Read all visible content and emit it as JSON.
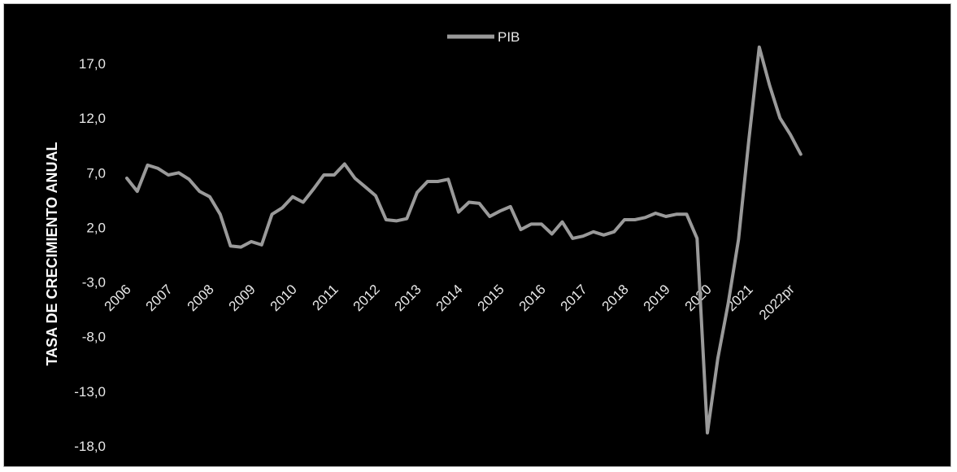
{
  "chart_data": {
    "type": "line",
    "title": "",
    "xlabel": "",
    "ylabel": "TASA DE CRECIMIENTO ANUAL",
    "ylim": [
      -18,
      17
    ],
    "yticks": [
      "-18,0",
      "-13,0",
      "-8,0",
      "-3,0",
      "2,0",
      "7,0",
      "12,0",
      "17,0"
    ],
    "ytick_values": [
      -18,
      -13,
      -8,
      -3,
      2,
      7,
      12,
      17
    ],
    "categories": [
      "2006",
      "2007",
      "2008",
      "2009",
      "2010",
      "2011",
      "2012",
      "2013",
      "2014",
      "2015",
      "2016",
      "2017",
      "2018",
      "2019",
      "2020",
      "2021",
      "2022pr"
    ],
    "legend_position": "top",
    "grid": false,
    "series": [
      {
        "name": "PIB",
        "color": "#9a9a9a",
        "x": [
          0.0,
          0.25,
          0.5,
          0.75,
          1.0,
          1.25,
          1.5,
          1.75,
          2.0,
          2.25,
          2.5,
          2.75,
          3.0,
          3.25,
          3.5,
          3.75,
          4.0,
          4.25,
          4.5,
          4.75,
          5.0,
          5.25,
          5.5,
          5.75,
          6.0,
          6.25,
          6.5,
          6.75,
          7.0,
          7.25,
          7.5,
          7.75,
          8.0,
          8.25,
          8.5,
          8.75,
          9.0,
          9.25,
          9.5,
          9.75,
          10.0,
          10.25,
          10.5,
          10.75,
          11.0,
          11.25,
          11.5,
          11.75,
          12.0,
          12.25,
          12.5,
          12.75,
          13.0,
          13.25,
          13.5,
          13.75,
          14.0,
          14.25,
          14.5,
          14.75,
          15.0,
          15.25,
          15.5,
          15.75,
          16.0,
          16.25
        ],
        "values": [
          6.5,
          5.3,
          7.7,
          7.4,
          6.8,
          7.0,
          6.4,
          5.3,
          4.8,
          3.2,
          0.3,
          0.2,
          0.7,
          0.4,
          3.2,
          3.8,
          4.8,
          4.3,
          5.5,
          6.8,
          6.8,
          7.8,
          6.5,
          5.7,
          4.9,
          2.7,
          2.6,
          2.8,
          5.2,
          6.2,
          6.2,
          6.4,
          3.4,
          4.3,
          4.2,
          3.0,
          3.5,
          3.9,
          1.8,
          2.3,
          2.3,
          1.4,
          2.5,
          1.0,
          1.2,
          1.6,
          1.3,
          1.6,
          2.7,
          2.7,
          2.9,
          3.3,
          3.0,
          3.2,
          3.2,
          1.0,
          -16.8,
          -10.0,
          -5.0,
          0.9,
          10.0,
          18.5,
          15.0,
          12.0,
          10.5,
          8.7
        ]
      }
    ]
  }
}
